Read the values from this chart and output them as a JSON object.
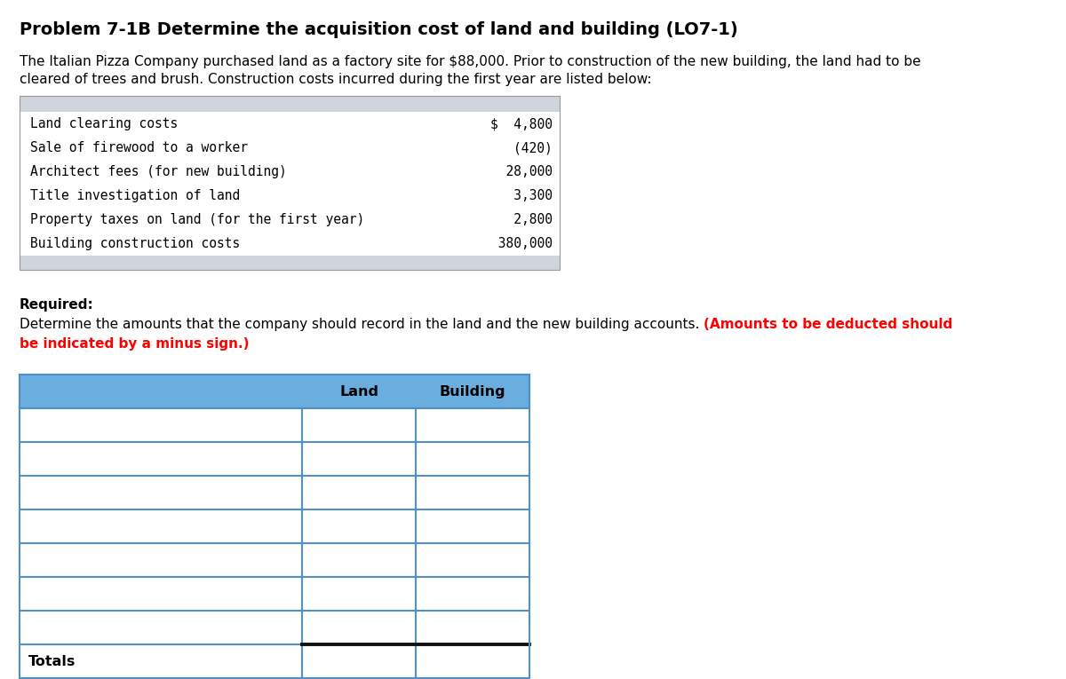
{
  "title": "Problem 7-1B Determine the acquisition cost of land and building (LO7-1)",
  "para_line1": "The Italian Pizza Company purchased land as a factory site for $88,000. Prior to construction of the new building, the land had to be",
  "para_line2": "cleared of trees and brush. Construction costs incurred during the first year are listed below:",
  "info_rows": [
    [
      "Land clearing costs",
      "$  4,800"
    ],
    [
      "Sale of firewood to a worker",
      "    (420)"
    ],
    [
      "Architect fees (for new building)",
      "  28,000"
    ],
    [
      "Title investigation of land",
      "   3,300"
    ],
    [
      "Property taxes on land (for the first year)",
      "   2,800"
    ],
    [
      "Building construction costs",
      " 380,000"
    ]
  ],
  "info_header_bg": "#d0d4dc",
  "info_row_bg": "#ffffff",
  "req_label": "Required:",
  "req_black": "Determine the amounts that the company should record in the land and the new building accounts. ",
  "req_red_inline": "(Amounts to be deducted should",
  "req_red_line2": "be indicated by a minus sign.)",
  "totals_label": "Totals",
  "ans_header_bg": "#6aaee0",
  "ans_border": "#5090c8",
  "ans_dark": "#111111",
  "row_bg": "#ffffff",
  "bg_color": "#ffffff",
  "title_fs": 14,
  "body_fs": 11,
  "mono_fs": 10.5
}
